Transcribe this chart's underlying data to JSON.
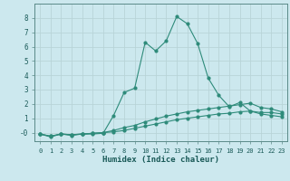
{
  "title": "",
  "xlabel": "Humidex (Indice chaleur)",
  "ylabel": "",
  "bg_color": "#cce8ee",
  "line_color": "#2e8b7a",
  "grid_color": "#b8d4d8",
  "x_values": [
    0,
    1,
    2,
    3,
    4,
    5,
    6,
    7,
    8,
    9,
    10,
    11,
    12,
    13,
    14,
    15,
    16,
    17,
    18,
    19,
    20,
    21,
    22,
    23
  ],
  "series1": [
    -0.1,
    -0.3,
    -0.1,
    -0.2,
    -0.1,
    -0.1,
    -0.05,
    1.2,
    2.8,
    3.1,
    6.3,
    5.7,
    6.4,
    8.1,
    7.6,
    6.2,
    3.8,
    2.6,
    1.8,
    2.1,
    1.5,
    1.4,
    1.4,
    1.3
  ],
  "series2": [
    -0.1,
    -0.25,
    -0.1,
    -0.15,
    -0.1,
    -0.05,
    -0.0,
    0.15,
    0.35,
    0.5,
    0.75,
    0.95,
    1.15,
    1.3,
    1.45,
    1.55,
    1.65,
    1.75,
    1.85,
    1.95,
    2.05,
    1.75,
    1.65,
    1.45
  ],
  "series3": [
    -0.1,
    -0.25,
    -0.1,
    -0.15,
    -0.1,
    -0.05,
    -0.0,
    0.05,
    0.15,
    0.3,
    0.45,
    0.6,
    0.75,
    0.9,
    1.0,
    1.1,
    1.2,
    1.3,
    1.35,
    1.45,
    1.5,
    1.3,
    1.2,
    1.1
  ],
  "ylim": [
    -0.6,
    9.0
  ],
  "xlim": [
    -0.5,
    23.5
  ]
}
